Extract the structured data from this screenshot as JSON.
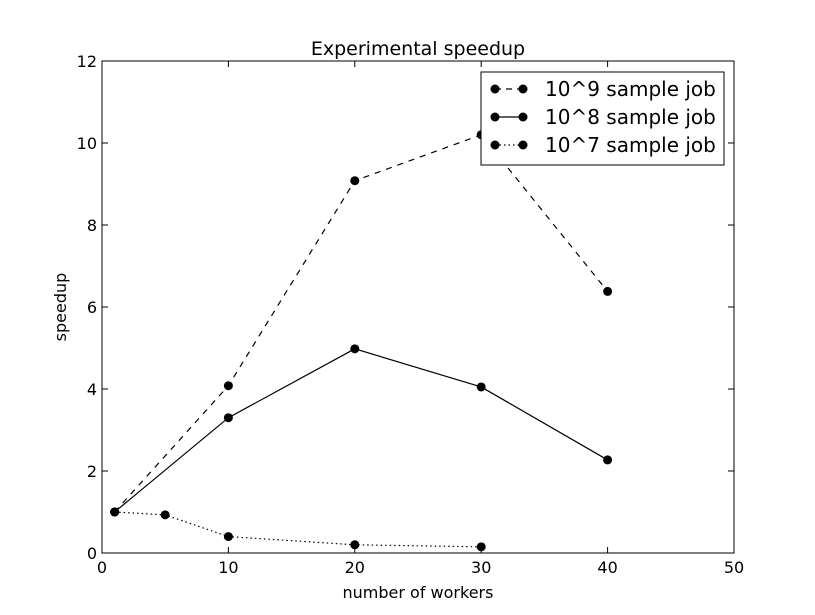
{
  "chart_data": {
    "type": "line",
    "title": "Experimental speedup",
    "xlabel": "number of workers",
    "ylabel": "speedup",
    "xlim": [
      0,
      50
    ],
    "ylim": [
      0,
      12
    ],
    "xticks": [
      0,
      10,
      20,
      30,
      40,
      50
    ],
    "yticks": [
      0,
      2,
      4,
      6,
      8,
      10,
      12
    ],
    "grid": false,
    "legend_position": "top-right",
    "series": [
      {
        "name": "10^9 sample job",
        "linestyle": "dashed",
        "marker": "circle",
        "color": "#000000",
        "x": [
          1,
          10,
          20,
          30,
          40
        ],
        "y": [
          1.0,
          4.08,
          9.08,
          10.2,
          6.38
        ]
      },
      {
        "name": "10^8 sample job",
        "linestyle": "solid",
        "marker": "circle",
        "color": "#000000",
        "x": [
          1,
          10,
          20,
          30,
          40
        ],
        "y": [
          1.0,
          3.3,
          4.98,
          4.05,
          2.27
        ]
      },
      {
        "name": "10^7 sample job",
        "linestyle": "dotted",
        "marker": "circle",
        "color": "#000000",
        "x": [
          1,
          5,
          10,
          20,
          30
        ],
        "y": [
          1.0,
          0.93,
          0.4,
          0.2,
          0.15
        ]
      }
    ]
  }
}
